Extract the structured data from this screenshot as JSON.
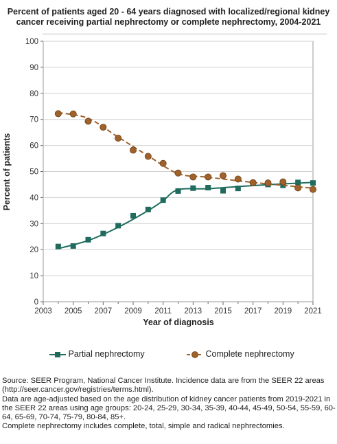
{
  "chart_data": {
    "type": "line",
    "title": "Percent of patients aged 20 - 64 years diagnosed with localized/regional kidney cancer receiving partial nephrectomy or complete nephrectomy, 2004-2021",
    "xlabel": "Year of diagnosis",
    "ylabel": "Percent of patients",
    "xlim": [
      2003,
      2021
    ],
    "ylim": [
      0,
      100
    ],
    "xticks": [
      2003,
      2005,
      2007,
      2009,
      2011,
      2013,
      2015,
      2017,
      2019,
      2021
    ],
    "yticks": [
      0,
      10,
      20,
      30,
      40,
      50,
      60,
      70,
      80,
      90,
      100
    ],
    "grid": true,
    "legend_position": "bottom",
    "series": [
      {
        "name": "Partial nephrectomy",
        "color": "#1f6b5e",
        "marker": "square",
        "line_style": "solid",
        "x": [
          2004,
          2005,
          2006,
          2007,
          2008,
          2009,
          2010,
          2011,
          2012,
          2013,
          2014,
          2015,
          2016,
          2017,
          2018,
          2019,
          2020,
          2021
        ],
        "values": [
          21.2,
          21.4,
          23.8,
          26.2,
          29.2,
          33.0,
          35.4,
          39.0,
          42.5,
          43.6,
          43.8,
          42.6,
          43.5,
          45.5,
          45.0,
          44.7,
          45.8,
          45.6
        ],
        "trend": [
          [
            2004,
            20.4
          ],
          [
            2006,
            23.5
          ],
          [
            2008,
            28.6
          ],
          [
            2010,
            35.0
          ],
          [
            2011,
            38.8
          ],
          [
            2012,
            43.0
          ],
          [
            2014,
            43.4
          ],
          [
            2017,
            44.6
          ],
          [
            2021,
            45.8
          ]
        ]
      },
      {
        "name": "Complete nephrectomy",
        "color": "#a0622a",
        "marker": "circle",
        "line_style": "dashed",
        "x": [
          2004,
          2005,
          2006,
          2007,
          2008,
          2009,
          2010,
          2011,
          2012,
          2013,
          2014,
          2015,
          2016,
          2017,
          2018,
          2019,
          2020,
          2021
        ],
        "values": [
          72.2,
          72.1,
          69.3,
          67.0,
          62.8,
          58.2,
          55.8,
          53.1,
          49.4,
          47.9,
          47.9,
          48.4,
          47.1,
          45.7,
          45.6,
          46.0,
          43.7,
          43.1
        ],
        "trend": [
          [
            2004,
            72.6
          ],
          [
            2006,
            70.4
          ],
          [
            2008,
            63.2
          ],
          [
            2010,
            56.0
          ],
          [
            2012,
            49.2
          ],
          [
            2014,
            47.8
          ],
          [
            2017,
            45.8
          ],
          [
            2021,
            43.6
          ]
        ]
      }
    ]
  },
  "footnotes": [
    "Source: SEER Program, National Cancer Institute. Incidence data are from the SEER 22 areas (http://seer.cancer.gov/registries/terms.html).",
    "Data are age-adjusted based on the age distribution of kidney cancer patients from 2019-2021 in the SEER 22 areas using age groups: 20-24, 25-29, 30-34, 35-39, 40-44, 45-49, 50-54, 55-59, 60-64, 65-69, 70-74, 75-79, 80-84, 85+.",
    "Complete nephrectomy includes complete, total, simple and radical nephrectomies."
  ]
}
